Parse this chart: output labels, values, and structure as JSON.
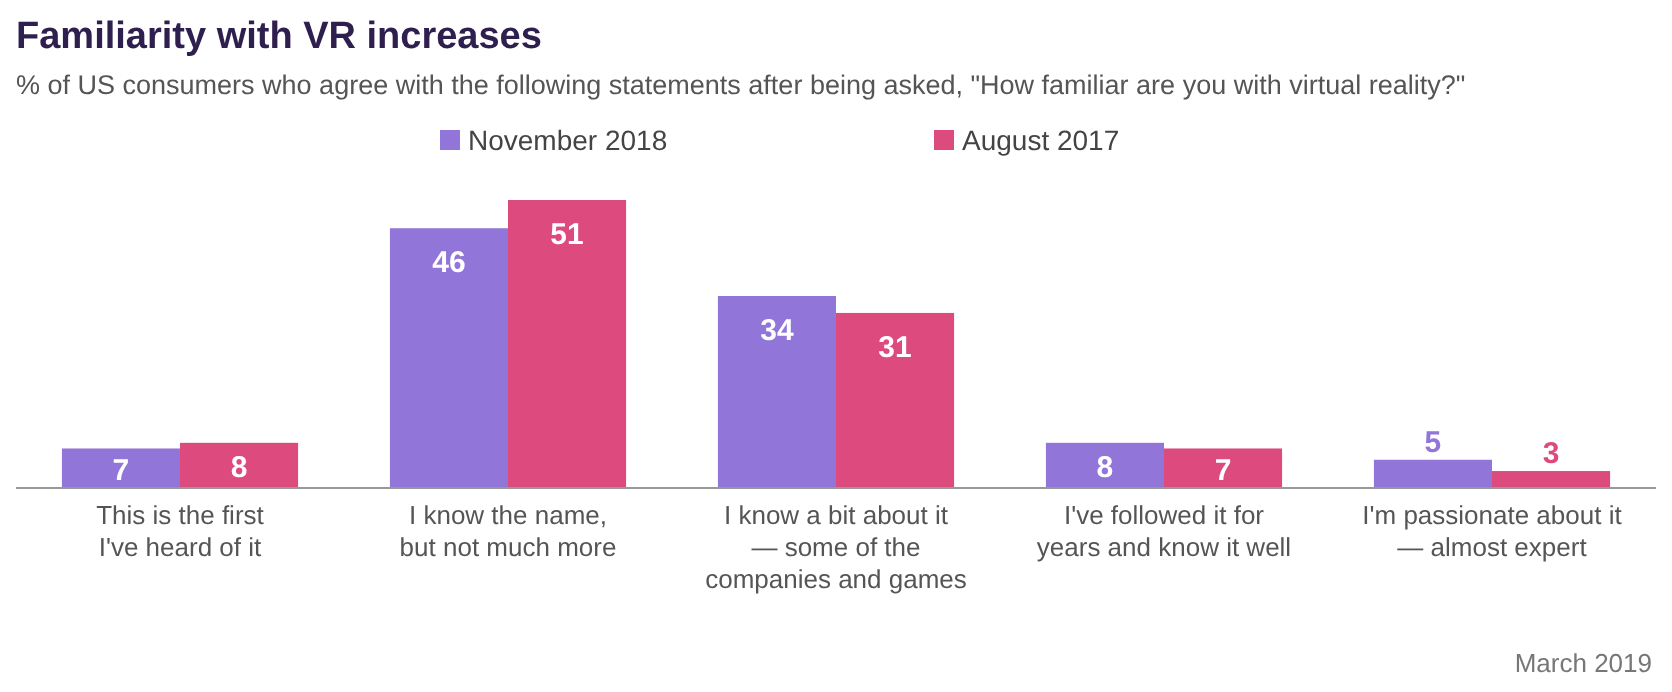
{
  "chart_data": {
    "type": "bar",
    "title": "Familiarity with VR increases",
    "subtitle": "% of US consumers who agree with the following statements after being asked, \"How familiar are you with virtual reality?\"",
    "categories": [
      "This is the first\nI've heard of it",
      "I know the name,\nbut not much more",
      "I know a bit about it\n— some of the\ncompanies and games",
      "I've followed it for\nyears and know it well",
      "I'm passionate about it\n— almost expert"
    ],
    "series": [
      {
        "name": "November 2018",
        "color": "#9275d8",
        "values": [
          7,
          46,
          34,
          8,
          5
        ]
      },
      {
        "name": "August 2017",
        "color": "#dc4a7e",
        "values": [
          8,
          51,
          31,
          7,
          3
        ]
      }
    ],
    "data_labels": true,
    "legend": "top",
    "annotations": [
      "March 2019"
    ]
  }
}
